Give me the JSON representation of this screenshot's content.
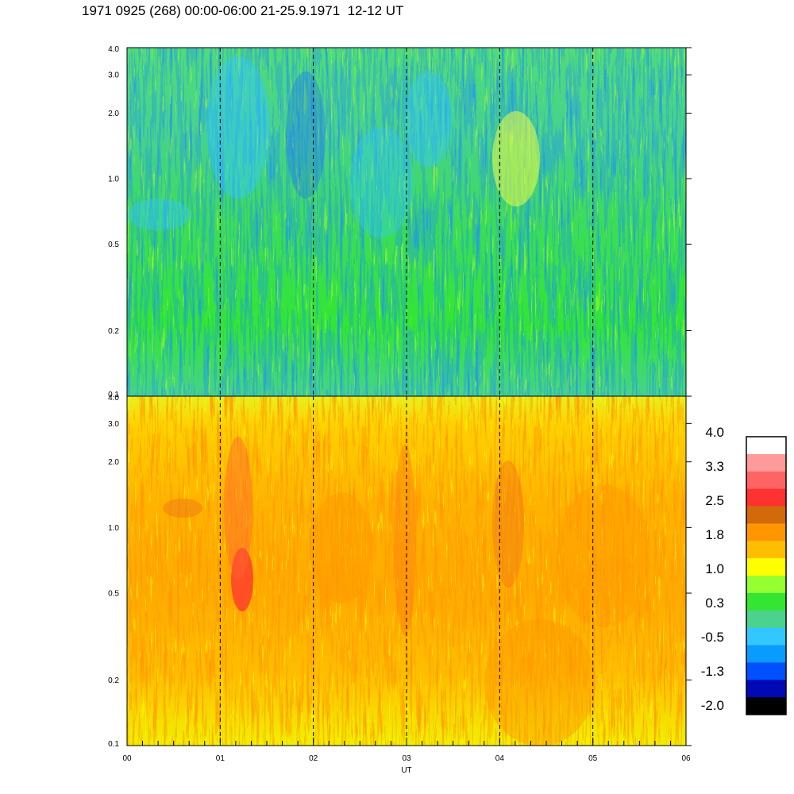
{
  "header": {
    "title": "1971 0925 (268) 00:00-06:00 21-25.9.1971  12-12 UT"
  },
  "chart_data": [
    {
      "type": "heatmap",
      "panel": "top",
      "x": {
        "label": "",
        "range": [
          0,
          6
        ],
        "ticks": []
      },
      "y": {
        "scale": "log",
        "range": [
          0.1,
          4.0
        ],
        "ticks": [
          {
            "value": 4.0,
            "label": "4.0"
          },
          {
            "value": 3.0,
            "label": "3.0"
          },
          {
            "value": 2.0,
            "label": "2.0"
          },
          {
            "value": 1.0,
            "label": "1.0"
          },
          {
            "value": 0.5,
            "label": "0.5"
          },
          {
            "value": 0.2,
            "label": "0.2"
          },
          {
            "value": 0.1,
            "label": "0.1"
          }
        ]
      },
      "dashed_gridlines_at_hours": [
        1,
        2,
        3,
        4,
        5
      ],
      "dominant_colors": [
        "green",
        "medium-green",
        "light-blue",
        "blue"
      ]
    },
    {
      "type": "heatmap",
      "panel": "bottom",
      "x": {
        "label": "UT",
        "range": [
          0,
          6
        ],
        "ticks": [
          {
            "value": 0,
            "label": "00"
          },
          {
            "value": 1,
            "label": "01"
          },
          {
            "value": 2,
            "label": "02"
          },
          {
            "value": 3,
            "label": "03"
          },
          {
            "value": 4,
            "label": "04"
          },
          {
            "value": 5,
            "label": "05"
          },
          {
            "value": 6,
            "label": "06"
          }
        ]
      },
      "y": {
        "scale": "log",
        "range": [
          0.1,
          4.0
        ],
        "ticks": [
          {
            "value": 4.0,
            "label": "4.0"
          },
          {
            "value": 3.0,
            "label": "3.0"
          },
          {
            "value": 2.0,
            "label": "2.0"
          },
          {
            "value": 1.0,
            "label": "1.0"
          },
          {
            "value": 0.5,
            "label": "0.5"
          },
          {
            "value": 0.2,
            "label": "0.2"
          },
          {
            "value": 0.1,
            "label": "0.1"
          }
        ]
      },
      "dashed_gridlines_at_hours": [
        1,
        2,
        3,
        4,
        5
      ],
      "dominant_colors": [
        "yellow",
        "orange",
        "light-orange",
        "green",
        "red"
      ]
    }
  ],
  "colorbar": {
    "labels": [
      "4.0",
      "3.3",
      "2.5",
      "1.8",
      "1.0",
      "0.3",
      "-0.5",
      "-1.3",
      "-2.0"
    ],
    "colors_top_to_bottom": [
      "#ffffff",
      "#ff9a9a",
      "#ff6464",
      "#ff3232",
      "#d2690a",
      "#ff9600",
      "#ffbe00",
      "#ffff00",
      "#96ff32",
      "#32e632",
      "#4bd28c",
      "#32c8ff",
      "#0a9bff",
      "#0050ff",
      "#000ab4",
      "#000000"
    ]
  }
}
